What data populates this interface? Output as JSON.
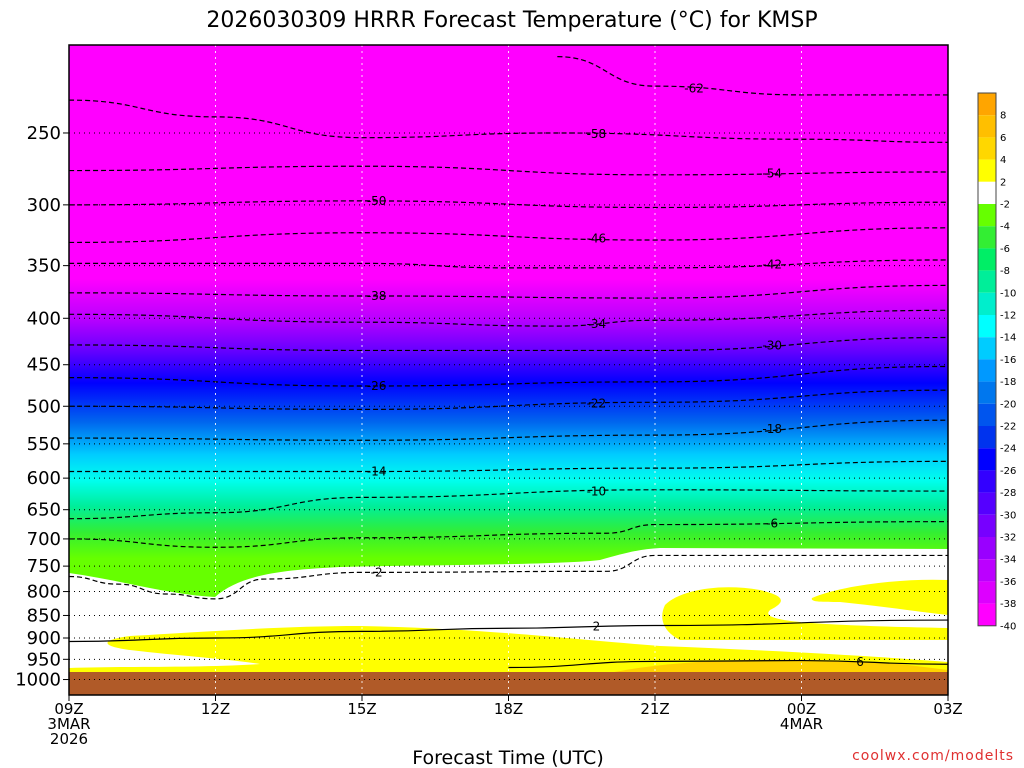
{
  "chart_data": {
    "type": "heatmap",
    "title": "2026030309 HRRR Forecast Temperature (°C) for KMSP",
    "xlabel": "Forecast Time (UTC)",
    "x_ticks": [
      {
        "hour": 0,
        "label": "09Z",
        "sub1": "3MAR",
        "sub2": "2026"
      },
      {
        "hour": 3,
        "label": "12Z",
        "sub1": "",
        "sub2": ""
      },
      {
        "hour": 6,
        "label": "15Z",
        "sub1": "",
        "sub2": ""
      },
      {
        "hour": 9,
        "label": "18Z",
        "sub1": "",
        "sub2": ""
      },
      {
        "hour": 12,
        "label": "21Z",
        "sub1": "",
        "sub2": ""
      },
      {
        "hour": 15,
        "label": "00Z",
        "sub1": "4MAR",
        "sub2": ""
      },
      {
        "hour": 18,
        "label": "03Z",
        "sub1": "",
        "sub2": ""
      }
    ],
    "xlim_hours": [
      0,
      18
    ],
    "y_ticks": [
      250,
      300,
      350,
      400,
      450,
      500,
      550,
      600,
      650,
      700,
      750,
      800,
      850,
      900,
      950,
      1000
    ],
    "y_axis": "pressure (hPa), log scale, inverted",
    "ylim": [
      1040,
      200
    ],
    "grid": true,
    "colorbar_labels": [
      "8",
      "6",
      "4",
      "2",
      "-2",
      "-4",
      "-6",
      "-8",
      "-10",
      "-12",
      "-14",
      "-16",
      "-18",
      "-20",
      "-22",
      "-24",
      "-26",
      "-28",
      "-30",
      "-32",
      "-34",
      "-36",
      "-38",
      "-40"
    ],
    "colorbar_colors": [
      "#ffa500",
      "#ffbf00",
      "#ffd700",
      "#ffff00",
      "#ffffff",
      "#66ff00",
      "#33ee33",
      "#00ee66",
      "#00ee99",
      "#00eecc",
      "#00ffff",
      "#00ccff",
      "#0099ff",
      "#0077ee",
      "#0055ee",
      "#0033ee",
      "#0000ff",
      "#3300ff",
      "#5500ff",
      "#7700ff",
      "#9900ff",
      "#bb00ff",
      "#dd00ff",
      "#ff00ff"
    ],
    "series": [
      {
        "name": "-62",
        "values": [
          {
            "h": 10,
            "p": 206
          },
          {
            "h": 12,
            "p": 222
          },
          {
            "h": 15,
            "p": 227
          },
          {
            "h": 18,
            "p": 227
          }
        ]
      },
      {
        "name": "-58",
        "values": [
          {
            "h": 0,
            "p": 230
          },
          {
            "h": 3,
            "p": 240
          },
          {
            "h": 6,
            "p": 253
          },
          {
            "h": 10,
            "p": 250
          },
          {
            "h": 15,
            "p": 254
          },
          {
            "h": 18,
            "p": 256
          }
        ]
      },
      {
        "name": "-54",
        "values": [
          {
            "h": 0,
            "p": 275
          },
          {
            "h": 6,
            "p": 272
          },
          {
            "h": 12,
            "p": 278
          },
          {
            "h": 18,
            "p": 276
          }
        ]
      },
      {
        "name": "-50",
        "values": [
          {
            "h": 0,
            "p": 300
          },
          {
            "h": 6,
            "p": 297
          },
          {
            "h": 12,
            "p": 302
          },
          {
            "h": 18,
            "p": 298
          }
        ]
      },
      {
        "name": "-46",
        "values": [
          {
            "h": 0,
            "p": 330
          },
          {
            "h": 6,
            "p": 322
          },
          {
            "h": 12,
            "p": 328
          },
          {
            "h": 18,
            "p": 318
          }
        ]
      },
      {
        "name": "-42",
        "values": [
          {
            "h": 0,
            "p": 348
          },
          {
            "h": 6,
            "p": 348
          },
          {
            "h": 9,
            "p": 352
          },
          {
            "h": 12,
            "p": 352
          },
          {
            "h": 18,
            "p": 345
          }
        ]
      },
      {
        "name": "-38",
        "values": [
          {
            "h": 0,
            "p": 375
          },
          {
            "h": 6,
            "p": 378
          },
          {
            "h": 12,
            "p": 380
          },
          {
            "h": 18,
            "p": 368
          }
        ]
      },
      {
        "name": "-34",
        "values": [
          {
            "h": 0,
            "p": 396
          },
          {
            "h": 6,
            "p": 404
          },
          {
            "h": 10,
            "p": 408
          },
          {
            "h": 12,
            "p": 402
          },
          {
            "h": 18,
            "p": 392
          }
        ]
      },
      {
        "name": "-30",
        "values": [
          {
            "h": 0,
            "p": 428
          },
          {
            "h": 6,
            "p": 434
          },
          {
            "h": 12,
            "p": 434
          },
          {
            "h": 18,
            "p": 420
          }
        ]
      },
      {
        "name": "-26",
        "values": [
          {
            "h": 0,
            "p": 465
          },
          {
            "h": 6,
            "p": 475
          },
          {
            "h": 12,
            "p": 470
          },
          {
            "h": 18,
            "p": 452
          }
        ]
      },
      {
        "name": "-22",
        "values": [
          {
            "h": 0,
            "p": 500
          },
          {
            "h": 6,
            "p": 504
          },
          {
            "h": 12,
            "p": 495
          },
          {
            "h": 18,
            "p": 480
          }
        ]
      },
      {
        "name": "-18",
        "values": [
          {
            "h": 0,
            "p": 542
          },
          {
            "h": 6,
            "p": 545
          },
          {
            "h": 12,
            "p": 538
          },
          {
            "h": 18,
            "p": 518
          }
        ]
      },
      {
        "name": "-14",
        "values": [
          {
            "h": 0,
            "p": 590
          },
          {
            "h": 6,
            "p": 590
          },
          {
            "h": 12,
            "p": 585
          },
          {
            "h": 18,
            "p": 575
          }
        ]
      },
      {
        "name": "-10",
        "values": [
          {
            "h": 0,
            "p": 665
          },
          {
            "h": 3,
            "p": 655
          },
          {
            "h": 6,
            "p": 630
          },
          {
            "h": 12,
            "p": 618
          },
          {
            "h": 18,
            "p": 620
          }
        ]
      },
      {
        "name": "-6",
        "values": [
          {
            "h": 0,
            "p": 700
          },
          {
            "h": 3,
            "p": 715
          },
          {
            "h": 6,
            "p": 698
          },
          {
            "h": 11,
            "p": 690
          },
          {
            "h": 12,
            "p": 675
          },
          {
            "h": 18,
            "p": 670
          }
        ]
      },
      {
        "name": "-2",
        "values": [
          {
            "h": 0,
            "p": 770
          },
          {
            "h": 1,
            "p": 785
          },
          {
            "h": 2,
            "p": 805
          },
          {
            "h": 3,
            "p": 815
          },
          {
            "h": 4,
            "p": 775
          },
          {
            "h": 6,
            "p": 762
          },
          {
            "h": 11,
            "p": 760
          },
          {
            "h": 12,
            "p": 730
          },
          {
            "h": 18,
            "p": 730
          }
        ]
      },
      {
        "name": "2",
        "values": [
          {
            "h": 0,
            "p": 908
          },
          {
            "h": 3,
            "p": 900
          },
          {
            "h": 6,
            "p": 885
          },
          {
            "h": 9,
            "p": 878
          },
          {
            "h": 12,
            "p": 872
          },
          {
            "h": 18,
            "p": 860
          }
        ]
      },
      {
        "name": "6",
        "values": [
          {
            "h": 9,
            "p": 970
          },
          {
            "h": 12,
            "p": 955
          },
          {
            "h": 15,
            "p": 953
          },
          {
            "h": 18,
            "p": 962
          }
        ]
      }
    ]
  },
  "credit": "coolwx.com/modelts"
}
